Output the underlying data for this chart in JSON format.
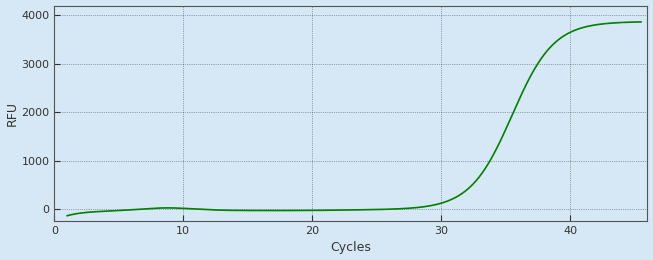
{
  "title": "",
  "xlabel": "Cycles",
  "ylabel": "RFU",
  "line_color": "#008000",
  "line_width": 1.2,
  "background_color": "#d6e8f5",
  "plot_bg_color": "#d6e8f5",
  "grid_color": "#000000",
  "xlim": [
    0,
    46
  ],
  "ylim": [
    -250,
    4200
  ],
  "xticks": [
    0,
    10,
    20,
    30,
    40
  ],
  "yticks": [
    0,
    1000,
    2000,
    3000,
    4000
  ],
  "sigmoid_L": 3870,
  "sigmoid_k": 0.62,
  "sigmoid_x0": 35.5,
  "x_start": 1,
  "x_end": 45.5
}
